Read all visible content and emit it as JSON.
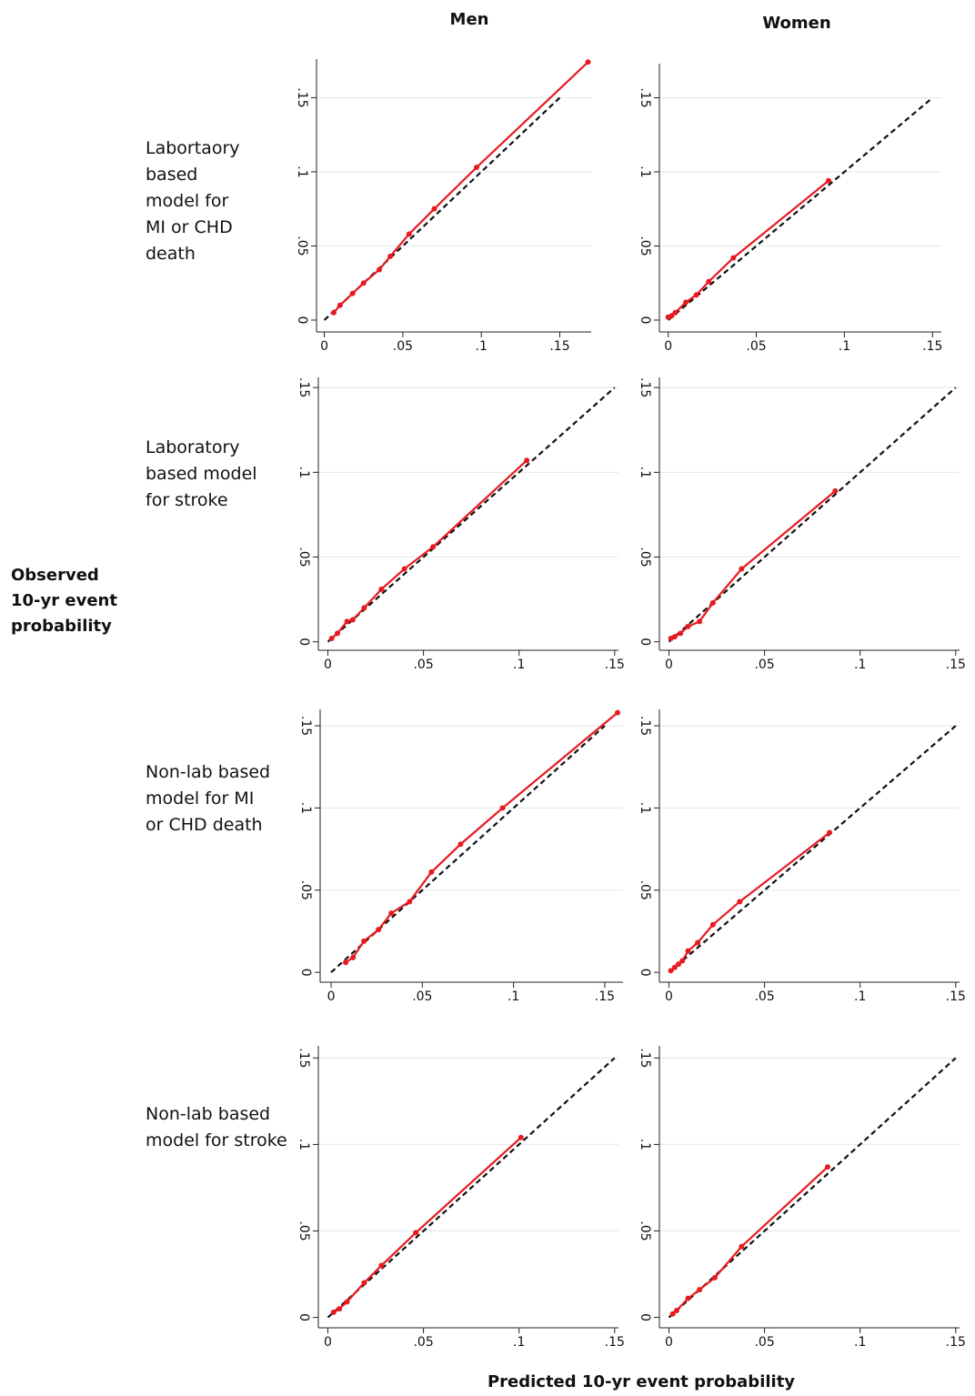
{
  "column_titles": [
    "Men",
    "Women"
  ],
  "row_labels": [
    [
      "Labortaory",
      "based",
      "model for",
      "MI or CHD",
      "death"
    ],
    [
      "Laboratory",
      "based model",
      "for stroke"
    ],
    [
      "Non-lab based",
      "model for MI",
      "or CHD death"
    ],
    [
      "Non-lab based",
      "model for stroke"
    ]
  ],
  "y_axis_title": [
    "Observed",
    "10-yr event",
    "probability"
  ],
  "x_axis_title": "Predicted 10-yr event probability",
  "chart_data": [
    {
      "type": "line",
      "xlim": [
        -0.005,
        0.17
      ],
      "ylim": [
        -0.008,
        0.176
      ],
      "grid": true,
      "xticks": [
        0,
        {
          "value": 0.05,
          "label": ".05"
        },
        {
          "value": 0.1,
          "label": ".1"
        },
        {
          "value": 0.15,
          "label": ".15"
        }
      ],
      "yticks": [
        0,
        {
          "value": 0.05,
          "label": ".05"
        },
        {
          "value": 0.1,
          "label": ".1"
        },
        {
          "value": 0.15,
          "label": ".15"
        }
      ],
      "series": [
        {
          "color": "#111111",
          "dash": "dashed",
          "x": [
            0,
            0.15
          ],
          "values": [
            0,
            0.15
          ]
        },
        {
          "color": "#e8191f",
          "markers": true,
          "x": [
            0.006,
            0.01,
            0.018,
            0.025,
            0.035,
            0.042,
            0.054,
            0.07,
            0.097,
            0.168
          ],
          "values": [
            0.005,
            0.01,
            0.018,
            0.025,
            0.034,
            0.043,
            0.058,
            0.075,
            0.103,
            0.174
          ]
        }
      ]
    },
    {
      "type": "line",
      "xlim": [
        -0.005,
        0.155
      ],
      "ylim": [
        -0.008,
        0.173
      ],
      "grid": true,
      "xticks": [
        0,
        {
          "value": 0.05,
          "label": ".05"
        },
        {
          "value": 0.1,
          "label": ".1"
        },
        {
          "value": 0.15,
          "label": ".15"
        }
      ],
      "yticks": [
        0,
        {
          "value": 0.05,
          "label": ".05"
        },
        {
          "value": 0.1,
          "label": ".1"
        },
        {
          "value": 0.15,
          "label": ".15"
        }
      ],
      "series": [
        {
          "color": "#111111",
          "dash": "dashed",
          "x": [
            0,
            0.15
          ],
          "values": [
            0,
            0.15
          ]
        },
        {
          "color": "#e8191f",
          "markers": true,
          "x": [
            0,
            0.002,
            0.004,
            0.01,
            0.016,
            0.023,
            0.037,
            0.091
          ],
          "values": [
            0.002,
            0.003,
            0.005,
            0.012,
            0.017,
            0.026,
            0.042,
            0.094
          ]
        }
      ]
    },
    {
      "type": "line",
      "xlim": [
        -0.005,
        0.152
      ],
      "ylim": [
        -0.005,
        0.156
      ],
      "grid": true,
      "xticks": [
        0,
        {
          "value": 0.05,
          "label": ".05"
        },
        {
          "value": 0.1,
          "label": ".1"
        },
        {
          "value": 0.15,
          "label": ".15"
        }
      ],
      "yticks": [
        0,
        {
          "value": 0.05,
          "label": ".05"
        },
        {
          "value": 0.1,
          "label": ".1"
        },
        {
          "value": 0.15,
          "label": ".15"
        }
      ],
      "series": [
        {
          "color": "#111111",
          "dash": "dashed",
          "x": [
            0,
            0.15
          ],
          "values": [
            0,
            0.15
          ]
        },
        {
          "color": "#e8191f",
          "markers": true,
          "x": [
            0.002,
            0.005,
            0.01,
            0.013,
            0.019,
            0.028,
            0.04,
            0.055,
            0.104
          ],
          "values": [
            0.002,
            0.005,
            0.012,
            0.013,
            0.02,
            0.031,
            0.043,
            0.056,
            0.107
          ]
        }
      ]
    },
    {
      "type": "line",
      "xlim": [
        -0.005,
        0.152
      ],
      "ylim": [
        -0.005,
        0.156
      ],
      "grid": true,
      "xticks": [
        0,
        {
          "value": 0.05,
          "label": ".05"
        },
        {
          "value": 0.1,
          "label": ".1"
        },
        {
          "value": 0.15,
          "label": ".15"
        }
      ],
      "yticks": [
        0,
        {
          "value": 0.05,
          "label": ".05"
        },
        {
          "value": 0.1,
          "label": ".1"
        },
        {
          "value": 0.15,
          "label": ".15"
        }
      ],
      "series": [
        {
          "color": "#111111",
          "dash": "dashed",
          "x": [
            0,
            0.15
          ],
          "values": [
            0,
            0.15
          ]
        },
        {
          "color": "#e8191f",
          "markers": true,
          "x": [
            0.001,
            0.003,
            0.006,
            0.01,
            0.016,
            0.023,
            0.038,
            0.087
          ],
          "values": [
            0.002,
            0.003,
            0.005,
            0.009,
            0.012,
            0.023,
            0.043,
            0.089
          ]
        }
      ]
    },
    {
      "type": "line",
      "xlim": [
        -0.006,
        0.16
      ],
      "ylim": [
        -0.006,
        0.16
      ],
      "grid": true,
      "xticks": [
        0,
        {
          "value": 0.05,
          "label": ".05"
        },
        {
          "value": 0.1,
          "label": ".1"
        },
        {
          "value": 0.15,
          "label": ".15"
        }
      ],
      "yticks": [
        0,
        {
          "value": 0.05,
          "label": ".05"
        },
        {
          "value": 0.1,
          "label": ".1"
        },
        {
          "value": 0.15,
          "label": ".15"
        }
      ],
      "series": [
        {
          "color": "#111111",
          "dash": "dashed",
          "x": [
            0,
            0.15
          ],
          "values": [
            0,
            0.15
          ]
        },
        {
          "color": "#e8191f",
          "markers": true,
          "x": [
            0.008,
            0.012,
            0.018,
            0.026,
            0.033,
            0.043,
            0.055,
            0.071,
            0.094,
            0.157
          ],
          "values": [
            0.006,
            0.009,
            0.019,
            0.026,
            0.036,
            0.043,
            0.061,
            0.078,
            0.1,
            0.158
          ]
        }
      ]
    },
    {
      "type": "line",
      "xlim": [
        -0.005,
        0.152
      ],
      "ylim": [
        -0.006,
        0.16
      ],
      "grid": true,
      "xticks": [
        0,
        {
          "value": 0.05,
          "label": ".05"
        },
        {
          "value": 0.1,
          "label": ".1"
        },
        {
          "value": 0.15,
          "label": ".15"
        }
      ],
      "yticks": [
        0,
        {
          "value": 0.05,
          "label": ".05"
        },
        {
          "value": 0.1,
          "label": ".1"
        },
        {
          "value": 0.15,
          "label": ".15"
        }
      ],
      "series": [
        {
          "color": "#111111",
          "dash": "dashed",
          "x": [
            0,
            0.15
          ],
          "values": [
            0,
            0.15
          ]
        },
        {
          "color": "#e8191f",
          "markers": true,
          "x": [
            0.001,
            0.003,
            0.005,
            0.007,
            0.01,
            0.015,
            0.023,
            0.037,
            0.084
          ],
          "values": [
            0.001,
            0.003,
            0.005,
            0.007,
            0.013,
            0.018,
            0.029,
            0.043,
            0.085
          ]
        }
      ]
    },
    {
      "type": "line",
      "xlim": [
        -0.005,
        0.152
      ],
      "ylim": [
        -0.006,
        0.157
      ],
      "grid": true,
      "xticks": [
        0,
        {
          "value": 0.05,
          "label": ".05"
        },
        {
          "value": 0.1,
          "label": ".1"
        },
        {
          "value": 0.15,
          "label": ".15"
        }
      ],
      "yticks": [
        0,
        {
          "value": 0.05,
          "label": ".05"
        },
        {
          "value": 0.1,
          "label": ".1"
        },
        {
          "value": 0.15,
          "label": ".15"
        }
      ],
      "series": [
        {
          "color": "#111111",
          "dash": "dashed",
          "x": [
            0,
            0.15
          ],
          "values": [
            0,
            0.15
          ]
        },
        {
          "color": "#e8191f",
          "markers": true,
          "x": [
            0.003,
            0.006,
            0.01,
            0.019,
            0.028,
            0.046,
            0.101
          ],
          "values": [
            0.003,
            0.005,
            0.009,
            0.02,
            0.03,
            0.049,
            0.104
          ]
        }
      ]
    },
    {
      "type": "line",
      "xlim": [
        -0.005,
        0.152
      ],
      "ylim": [
        -0.006,
        0.157
      ],
      "grid": true,
      "xticks": [
        0,
        {
          "value": 0.05,
          "label": ".05"
        },
        {
          "value": 0.1,
          "label": ".1"
        },
        {
          "value": 0.15,
          "label": ".15"
        }
      ],
      "yticks": [
        0,
        {
          "value": 0.05,
          "label": ".05"
        },
        {
          "value": 0.1,
          "label": ".1"
        },
        {
          "value": 0.15,
          "label": ".15"
        }
      ],
      "series": [
        {
          "color": "#111111",
          "dash": "dashed",
          "x": [
            0,
            0.15
          ],
          "values": [
            0,
            0.15
          ]
        },
        {
          "color": "#e8191f",
          "markers": true,
          "x": [
            0.002,
            0.004,
            0.01,
            0.016,
            0.024,
            0.038,
            0.083
          ],
          "values": [
            0.002,
            0.004,
            0.011,
            0.016,
            0.023,
            0.041,
            0.087
          ]
        }
      ]
    }
  ]
}
